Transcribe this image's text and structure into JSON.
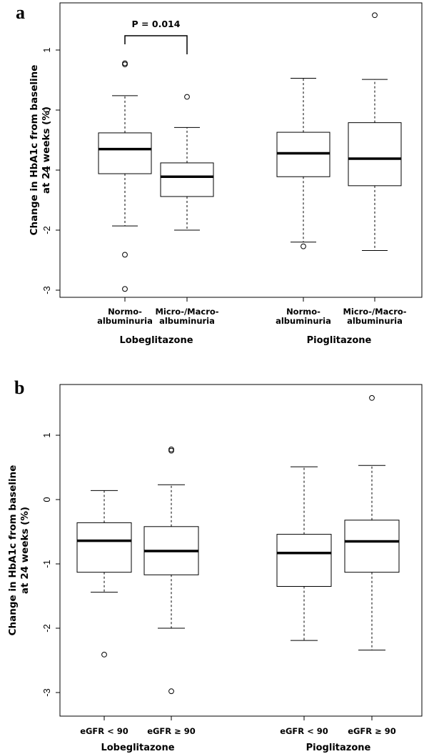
{
  "chart_data": [
    {
      "panel": "a",
      "type": "boxplot",
      "ylabel": [
        "Change in HbA1c from baseline",
        "at 24 weeks (%)"
      ],
      "yticks": [
        1,
        0,
        -1,
        -2,
        -3
      ],
      "ylim": [
        -3.1,
        1.65
      ],
      "groups": [
        "Lobeglitazone",
        "Pioglitazone"
      ],
      "annotation": {
        "text": "P = 0.014",
        "from_box": 0,
        "to_box": 1
      },
      "boxes": [
        {
          "label": [
            "Normo-",
            "albuminuria"
          ],
          "group": 0,
          "q1": -1.06,
          "median": -0.65,
          "q3": -0.38,
          "whisker_low": -1.93,
          "whisker_high": 0.24,
          "outliers": [
            0.78,
            0.76,
            -2.41,
            -2.98
          ]
        },
        {
          "label": [
            "Micro-/Macro-",
            "albuminuria"
          ],
          "group": 0,
          "q1": -1.44,
          "median": -1.11,
          "q3": -0.88,
          "whisker_low": -2.0,
          "whisker_high": -0.29,
          "outliers": [
            0.22
          ]
        },
        {
          "label": [
            "Normo-",
            "albuminuria"
          ],
          "group": 1,
          "q1": -1.11,
          "median": -0.72,
          "q3": -0.37,
          "whisker_low": -2.2,
          "whisker_high": 0.53,
          "outliers": [
            -2.27
          ]
        },
        {
          "label": [
            "Micro-/Macro-",
            "albuminuria"
          ],
          "group": 1,
          "q1": -1.26,
          "median": -0.81,
          "q3": -0.21,
          "whisker_low": -2.34,
          "whisker_high": 0.51,
          "outliers": [
            1.58
          ]
        }
      ]
    },
    {
      "panel": "b",
      "type": "boxplot",
      "ylabel": [
        "Change in HbA1c from baseline",
        "at 24 weeks (%)"
      ],
      "yticks": [
        1,
        0,
        -1,
        -2,
        -3
      ],
      "ylim": [
        -3.05,
        1.65
      ],
      "groups": [
        "Lobeglitazone",
        "Pioglitazone"
      ],
      "boxes": [
        {
          "label": [
            "eGFR < 90"
          ],
          "group": 0,
          "q1": -1.13,
          "median": -0.64,
          "q3": -0.36,
          "whisker_low": -1.44,
          "whisker_high": 0.14,
          "outliers": [
            -2.41
          ]
        },
        {
          "label": [
            "eGFR ≥ 90"
          ],
          "group": 0,
          "q1": -1.17,
          "median": -0.8,
          "q3": -0.42,
          "whisker_low": -2.0,
          "whisker_high": 0.23,
          "outliers": [
            0.78,
            0.76,
            -2.98
          ]
        },
        {
          "label": [
            "eGFR < 90"
          ],
          "group": 1,
          "q1": -1.35,
          "median": -0.83,
          "q3": -0.54,
          "whisker_low": -2.19,
          "whisker_high": 0.51,
          "outliers": []
        },
        {
          "label": [
            "eGFR ≥ 90"
          ],
          "group": 1,
          "q1": -1.13,
          "median": -0.65,
          "q3": -0.32,
          "whisker_low": -2.34,
          "whisker_high": 0.53,
          "outliers": [
            1.58
          ]
        }
      ]
    }
  ]
}
